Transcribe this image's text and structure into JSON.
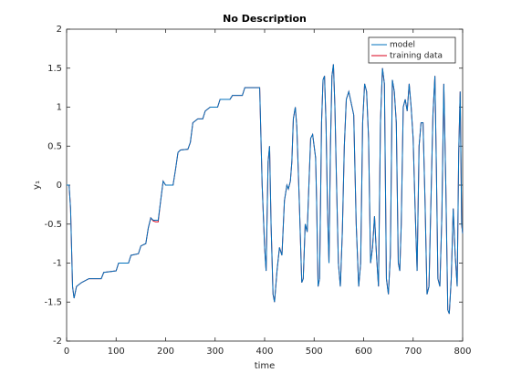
{
  "chart_data": {
    "type": "line",
    "title": "No Description",
    "xlabel": "time",
    "ylabel": "y₁",
    "x": [
      0,
      5,
      8,
      12,
      15,
      20,
      30,
      45,
      70,
      75,
      100,
      105,
      125,
      130,
      145,
      150,
      160,
      165,
      170,
      175,
      180,
      185,
      190,
      195,
      200,
      215,
      220,
      225,
      230,
      245,
      250,
      255,
      265,
      275,
      280,
      290,
      305,
      310,
      330,
      335,
      355,
      360,
      385,
      390,
      395,
      400,
      403,
      407,
      410,
      413,
      417,
      420,
      425,
      430,
      435,
      440,
      445,
      448,
      452,
      455,
      458,
      462,
      465,
      470,
      475,
      478,
      482,
      486,
      490,
      493,
      497,
      500,
      503,
      505,
      508,
      511,
      515,
      518,
      521,
      524,
      527,
      530,
      533,
      536,
      539,
      542,
      545,
      549,
      553,
      557,
      561,
      565,
      570,
      575,
      580,
      585,
      590,
      594,
      598,
      602,
      606,
      610,
      614,
      618,
      622,
      626,
      630,
      634,
      638,
      642,
      646,
      650,
      654,
      658,
      662,
      666,
      670,
      673,
      676,
      680,
      684,
      688,
      692,
      696,
      700,
      704,
      708,
      712,
      716,
      720,
      724,
      728,
      732,
      736,
      740,
      744,
      747,
      750,
      754,
      758,
      762,
      766,
      770,
      773,
      777,
      781,
      785,
      789,
      792,
      795,
      798,
      800
    ],
    "series": [
      {
        "name": "training data",
        "color": "#d9001b",
        "values": [
          0,
          0,
          -0.3,
          -1.3,
          -1.45,
          -1.3,
          -1.25,
          -1.2,
          -1.2,
          -1.12,
          -1.1,
          -1.0,
          -1.0,
          -0.9,
          -0.88,
          -0.78,
          -0.75,
          -0.55,
          -0.42,
          -0.46,
          -0.47,
          -0.47,
          -0.2,
          0.05,
          0.0,
          0.0,
          0.2,
          0.42,
          0.45,
          0.46,
          0.55,
          0.8,
          0.85,
          0.85,
          0.95,
          1.0,
          1.0,
          1.1,
          1.1,
          1.15,
          1.15,
          1.25,
          1.25,
          1.25,
          0.0,
          -0.8,
          -1.1,
          0.3,
          0.5,
          -0.5,
          -1.4,
          -1.5,
          -1.1,
          -0.8,
          -0.9,
          -0.2,
          0.0,
          -0.05,
          0.05,
          0.3,
          0.85,
          1.0,
          0.75,
          -0.2,
          -1.25,
          -1.2,
          -0.5,
          -0.6,
          0.1,
          0.6,
          0.65,
          0.5,
          0.35,
          -0.2,
          -1.3,
          -1.2,
          0.8,
          1.35,
          1.4,
          0.8,
          -0.3,
          -1.0,
          0.5,
          1.4,
          1.55,
          1.0,
          0.1,
          -1.0,
          -1.3,
          -0.6,
          0.5,
          1.1,
          1.2,
          1.05,
          0.9,
          -0.5,
          -1.3,
          -1.0,
          0.8,
          1.3,
          1.2,
          0.6,
          -1.0,
          -0.8,
          -0.4,
          -0.9,
          -1.3,
          0.8,
          1.5,
          1.3,
          -1.2,
          -1.4,
          -0.9,
          1.35,
          1.2,
          0.8,
          -1.0,
          -1.1,
          -0.5,
          1.0,
          1.1,
          0.95,
          1.3,
          1.0,
          0.6,
          -0.3,
          -1.1,
          0.5,
          0.8,
          0.8,
          -0.2,
          -1.4,
          -1.3,
          -0.2,
          0.9,
          1.4,
          0.2,
          -1.2,
          -1.3,
          -0.4,
          1.3,
          0.0,
          -1.6,
          -1.65,
          -1.2,
          -0.3,
          -0.9,
          -1.3,
          0.4,
          1.2,
          -0.5,
          -0.62
        ]
      },
      {
        "name": "model",
        "color": "#0072bd",
        "values": [
          0,
          0,
          -0.3,
          -1.3,
          -1.45,
          -1.3,
          -1.25,
          -1.2,
          -1.2,
          -1.12,
          -1.1,
          -1.0,
          -1.0,
          -0.9,
          -0.88,
          -0.78,
          -0.75,
          -0.55,
          -0.42,
          -0.45,
          -0.45,
          -0.45,
          -0.2,
          0.05,
          0.0,
          0.0,
          0.2,
          0.42,
          0.45,
          0.46,
          0.55,
          0.8,
          0.85,
          0.85,
          0.95,
          1.0,
          1.0,
          1.1,
          1.1,
          1.15,
          1.15,
          1.25,
          1.25,
          1.25,
          0.0,
          -0.8,
          -1.1,
          0.3,
          0.5,
          -0.5,
          -1.4,
          -1.5,
          -1.1,
          -0.8,
          -0.9,
          -0.2,
          0.0,
          -0.05,
          0.05,
          0.3,
          0.85,
          1.0,
          0.75,
          -0.2,
          -1.25,
          -1.2,
          -0.5,
          -0.6,
          0.1,
          0.6,
          0.65,
          0.5,
          0.35,
          -0.2,
          -1.3,
          -1.2,
          0.8,
          1.35,
          1.4,
          0.8,
          -0.3,
          -1.0,
          0.5,
          1.4,
          1.55,
          1.0,
          0.1,
          -1.0,
          -1.3,
          -0.6,
          0.5,
          1.1,
          1.2,
          1.05,
          0.9,
          -0.5,
          -1.3,
          -1.0,
          0.8,
          1.3,
          1.2,
          0.6,
          -1.0,
          -0.8,
          -0.4,
          -0.9,
          -1.3,
          0.8,
          1.5,
          1.3,
          -1.2,
          -1.4,
          -0.9,
          1.35,
          1.2,
          0.8,
          -1.0,
          -1.1,
          -0.5,
          1.0,
          1.1,
          0.95,
          1.3,
          1.0,
          0.6,
          -0.3,
          -1.1,
          0.5,
          0.8,
          0.8,
          -0.2,
          -1.4,
          -1.3,
          -0.2,
          0.9,
          1.4,
          0.2,
          -1.2,
          -1.3,
          -0.4,
          1.3,
          0.0,
          -1.6,
          -1.65,
          -1.2,
          -0.3,
          -0.9,
          -1.3,
          0.4,
          1.2,
          -0.5,
          -0.62
        ]
      }
    ],
    "legend_order": [
      1,
      0
    ],
    "xlim": [
      0,
      800
    ],
    "xticks": [
      0,
      100,
      200,
      300,
      400,
      500,
      600,
      700,
      800
    ],
    "ylim": [
      -2,
      2
    ],
    "yticks": [
      -2,
      -1.5,
      -1,
      -0.5,
      0,
      0.5,
      1,
      1.5,
      2
    ],
    "grid": false,
    "legend": "northeast"
  }
}
